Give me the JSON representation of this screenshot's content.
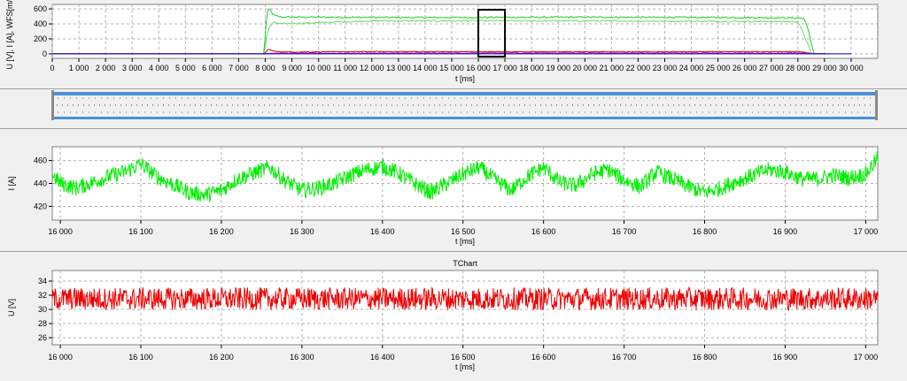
{
  "chart_data": [
    {
      "type": "line",
      "title": "",
      "xlabel": "t [ms]",
      "ylabel": "U [V], I [A], WFS[m/m",
      "xlim": [
        0,
        31000
      ],
      "ylim": [
        -60,
        660
      ],
      "xticks": [
        0,
        1000,
        2000,
        3000,
        4000,
        5000,
        6000,
        7000,
        8000,
        9000,
        10000,
        11000,
        12000,
        13000,
        14000,
        15000,
        16000,
        17000,
        18000,
        19000,
        20000,
        21000,
        22000,
        23000,
        24000,
        25000,
        26000,
        27000,
        28000,
        29000,
        30000
      ],
      "xtick_labels": [
        "0",
        "1 000",
        "2 000",
        "3 000",
        "4 000",
        "5 000",
        "6 000",
        "7 000",
        "8 000",
        "9 000",
        "10 000",
        "11 000",
        "12 000",
        "13 000",
        "14 000",
        "15 000",
        "16 000",
        "17 000",
        "18 000",
        "19 000",
        "20 000",
        "21 000",
        "22 000",
        "23 000",
        "24 000",
        "25 000",
        "26 000",
        "27 000",
        "28 000",
        "29 000",
        "30 000"
      ],
      "yticks": [
        0,
        200,
        400,
        600
      ],
      "ytick_labels": [
        "0",
        "200",
        "400",
        "600"
      ],
      "grid": true,
      "zoom_window_ms": [
        16000,
        17000
      ],
      "series": [
        {
          "color": "#22cc22",
          "x": [
            0,
            7950,
            8050,
            8150,
            8300,
            8600,
            10000,
            14000,
            20000,
            26000,
            28000,
            28250,
            28400,
            28600,
            29200
          ],
          "values": [
            0,
            0,
            520,
            610,
            520,
            490,
            490,
            485,
            490,
            485,
            480,
            470,
            300,
            0,
            0
          ]
        },
        {
          "color": "#66dd66",
          "x": [
            0,
            7950,
            8100,
            8300,
            8600,
            12000,
            20000,
            28000,
            28300,
            28500,
            29000
          ],
          "values": [
            0,
            0,
            320,
            420,
            400,
            440,
            440,
            430,
            200,
            0,
            0
          ]
        },
        {
          "color": "#cc0000",
          "x": [
            0,
            7950,
            8100,
            8400,
            9000,
            12000,
            20000,
            28000,
            28300,
            28600,
            29000
          ],
          "values": [
            0,
            0,
            60,
            30,
            25,
            30,
            28,
            30,
            20,
            0,
            0
          ]
        },
        {
          "color": "#cc00cc",
          "x": [
            0,
            7950,
            8200,
            12000,
            20000,
            28000,
            28400,
            29000
          ],
          "values": [
            0,
            0,
            8,
            10,
            12,
            10,
            5,
            0
          ]
        },
        {
          "color": "#0000cc",
          "x": [
            0,
            30000
          ],
          "values": [
            0,
            0
          ]
        }
      ]
    },
    {
      "type": "line",
      "title": "",
      "xlabel": "t [ms]",
      "ylabel": "I [A]",
      "xlim": [
        15990,
        17015
      ],
      "ylim": [
        408,
        472
      ],
      "xticks": [
        16000,
        16100,
        16200,
        16300,
        16400,
        16500,
        16600,
        16700,
        16800,
        16900,
        17000
      ],
      "xtick_labels": [
        "16 000",
        "16 100",
        "16 200",
        "16 300",
        "16 400",
        "16 500",
        "16 600",
        "16 700",
        "16 800",
        "16 900",
        "17 000"
      ],
      "yticks": [
        420,
        440,
        460
      ],
      "ytick_labels": [
        "420",
        "440",
        "460"
      ],
      "grid": true,
      "series": [
        {
          "color": "#00ee00",
          "x": [
            15990,
            16000,
            16020,
            16040,
            16060,
            16080,
            16100,
            16120,
            16140,
            16160,
            16180,
            16200,
            16220,
            16240,
            16260,
            16280,
            16300,
            16320,
            16340,
            16360,
            16380,
            16400,
            16420,
            16440,
            16460,
            16480,
            16500,
            16520,
            16540,
            16560,
            16580,
            16600,
            16620,
            16640,
            16660,
            16680,
            16700,
            16720,
            16740,
            16760,
            16780,
            16800,
            16820,
            16840,
            16860,
            16880,
            16900,
            16920,
            16940,
            16960,
            16980,
            17000,
            17015
          ],
          "values": [
            448,
            440,
            436,
            441,
            446,
            450,
            457,
            446,
            439,
            432,
            430,
            434,
            444,
            449,
            454,
            442,
            434,
            436,
            440,
            447,
            452,
            455,
            449,
            440,
            432,
            440,
            448,
            454,
            443,
            434,
            446,
            454,
            441,
            438,
            448,
            452,
            443,
            437,
            450,
            444,
            437,
            432,
            436,
            442,
            447,
            452,
            450,
            444,
            444,
            447,
            445,
            448,
            462
          ],
          "noise": 7
        }
      ]
    },
    {
      "type": "line",
      "title": "TChart",
      "xlabel": "t [ms]",
      "ylabel": "U [V]",
      "xlim": [
        15990,
        17015
      ],
      "ylim": [
        25,
        35.5
      ],
      "xticks": [
        16000,
        16100,
        16200,
        16300,
        16400,
        16500,
        16600,
        16700,
        16800,
        16900,
        17000
      ],
      "xtick_labels": [
        "16 000",
        "16 100",
        "16 200",
        "16 300",
        "16 400",
        "16 500",
        "16 600",
        "16 700",
        "16 800",
        "16 900",
        "17 000"
      ],
      "yticks": [
        26,
        28,
        30,
        32,
        34
      ],
      "ytick_labels": [
        "26",
        "28",
        "30",
        "32",
        "34"
      ],
      "grid": true,
      "series": [
        {
          "color": "#ee0000",
          "x": [
            15990,
            17015
          ],
          "values": [
            31.5,
            31.5
          ],
          "noise": 1.6
        }
      ]
    }
  ]
}
